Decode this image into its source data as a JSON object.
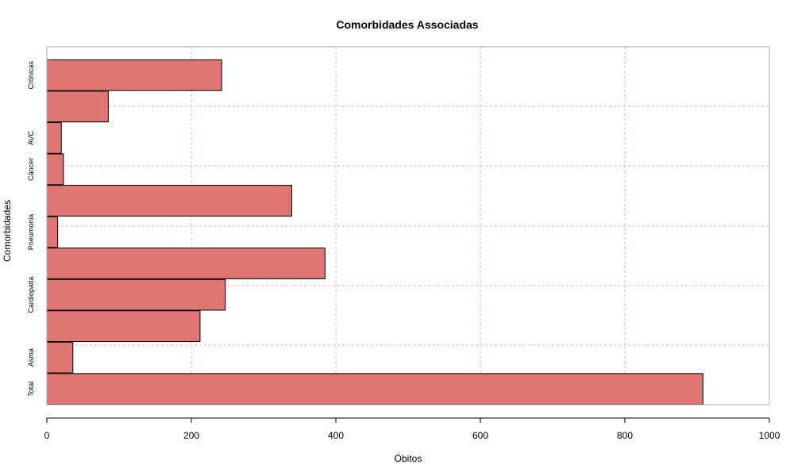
{
  "chart_data": {
    "type": "bar",
    "orientation": "horizontal",
    "title": "Comorbidades Associadas",
    "xlabel": "Óbitos",
    "ylabel": "Comorbidades",
    "xlim": [
      0,
      1000
    ],
    "xticks": [
      0,
      200,
      400,
      600,
      800,
      1000
    ],
    "grid": true,
    "bar_color": "#e07674",
    "grid_color": "#f4a6b8",
    "categories_bottom_to_top": [
      "Total",
      "Asma",
      "",
      "Cardiopatia",
      "",
      "Pneumonia",
      "",
      "Câncer",
      "AVC",
      "",
      "Crônicas"
    ],
    "values_bottom_to_top": [
      908,
      36,
      212,
      247,
      385,
      15,
      339,
      23,
      20,
      85,
      242
    ]
  }
}
